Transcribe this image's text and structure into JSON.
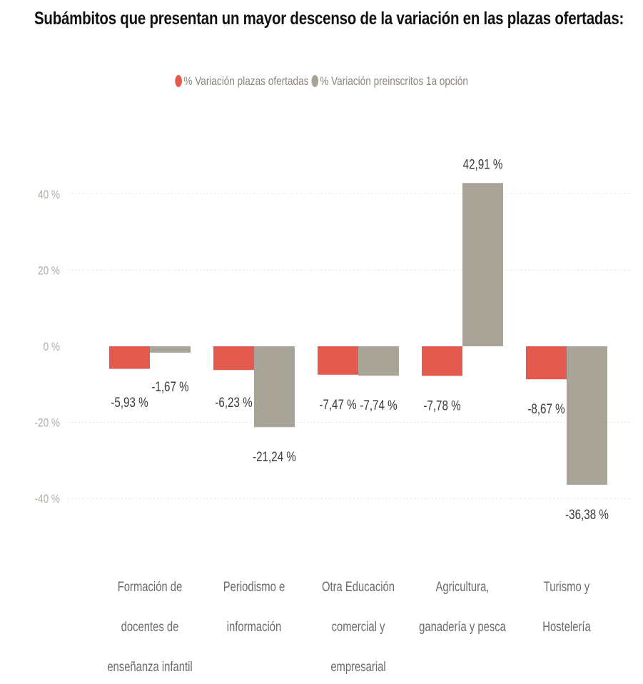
{
  "chart_data": {
    "type": "bar",
    "title": "Subámbitos que presentan un mayor descenso de la variación en las plazas ofertadas:",
    "categories": [
      [
        "Formación de",
        "docentes de",
        "enseñanza infantil"
      ],
      [
        "Periodismo e",
        "información"
      ],
      [
        "Otra Educación",
        "comercial y",
        "empresarial"
      ],
      [
        "Agricultura,",
        "ganadería y pesca"
      ],
      [
        "Turismo y",
        "Hostelería"
      ]
    ],
    "series": [
      {
        "name": "% Variación plazas ofertadas",
        "color": "#E35B4E",
        "values": [
          -5.93,
          -6.23,
          -7.47,
          -7.78,
          -8.67
        ],
        "labels": [
          "-5,93 %",
          "-6,23 %",
          "-7,47 %",
          "-7,78 %",
          "-8,67 %"
        ]
      },
      {
        "name": "% Variación preinscritos 1a opción",
        "color": "#A9A498",
        "values": [
          -1.67,
          -21.24,
          -7.74,
          42.91,
          -36.38
        ],
        "labels": [
          "-1,67 %",
          "-21,24 %",
          "-7,74 %",
          "42,91 %",
          "-36,38 %"
        ]
      }
    ],
    "yticks": [
      40,
      20,
      0,
      -20,
      -40
    ],
    "ytick_labels": [
      "40 %",
      "20 %",
      "0 %",
      "-20 %",
      "-40 %"
    ],
    "ylim": [
      -40,
      40
    ],
    "grid": true,
    "legend": "top-center"
  }
}
